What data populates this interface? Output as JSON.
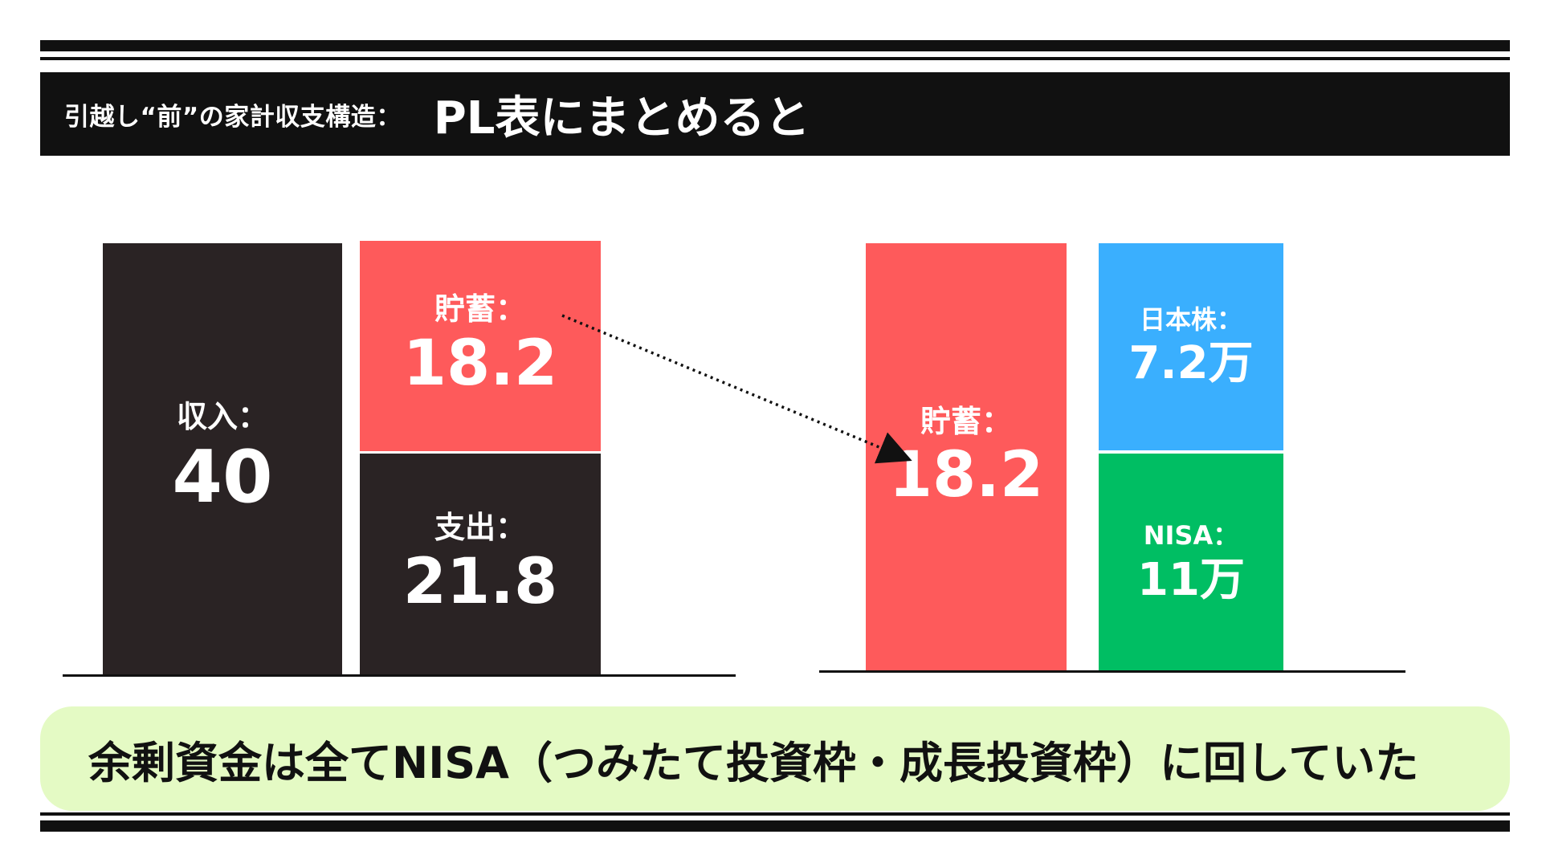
{
  "header": {
    "subtitle": "引越し“前”の家計収支構造：",
    "title": "PL表にまとめると"
  },
  "left": {
    "income": {
      "label": "収入：",
      "value": "40"
    },
    "savings": {
      "label": "貯蓄：",
      "value": "18.2"
    },
    "spending": {
      "label": "支出：",
      "value": "21.8"
    }
  },
  "right": {
    "savings": {
      "label": "貯蓄：",
      "value": "18.2"
    },
    "japan_stocks": {
      "label": "日本株：",
      "value": "7.2万"
    },
    "nisa": {
      "label": "NISA：",
      "value": "11万"
    }
  },
  "summary": {
    "text": "余剰資金は全てNISA（つみたて投資枠・成長投資枠）に回していた"
  },
  "colors": {
    "dark": "#2a2324",
    "red": "#fe5a5b",
    "blue": "#3aaffe",
    "green": "#00be63",
    "summary_bg": "#e4fac4"
  }
}
